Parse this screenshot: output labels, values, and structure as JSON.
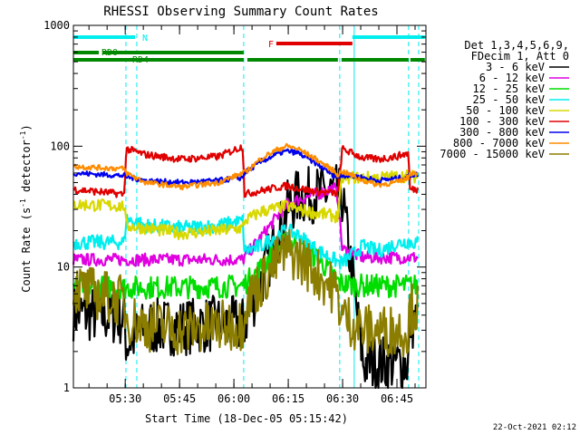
{
  "chart_data": {
    "type": "line",
    "title": "RHESSI Observing Summary Count Rates",
    "xlabel": "Start Time (18-Dec-05 05:15:42)",
    "ylabel": "Count Rate (s⁻¹ detector⁻¹)",
    "ylabel_base": "Count Rate (s",
    "ylabel_sup1": "-1",
    "ylabel_mid": " detector",
    "ylabel_sup2": "-1",
    "ylabel_end": ")",
    "y_scale": "log",
    "ylim": [
      1,
      1000
    ],
    "xlim": [
      "05:15:42",
      "06:53:00"
    ],
    "x_ticks": [
      "05:30",
      "05:45",
      "06:00",
      "06:15",
      "06:30",
      "06:45"
    ],
    "x_tick_minutes": [
      14.3,
      29.3,
      44.3,
      59.3,
      74.3,
      89.3
    ],
    "x_range_minutes": [
      0,
      97.3
    ],
    "y_ticks": [
      1,
      10,
      100,
      1000
    ],
    "y_tick_labels": [
      "1",
      "10",
      "100",
      "1000"
    ],
    "legend_header": [
      "Det 1,3,4,5,6,9,",
      "FDecim 1, Att 0"
    ],
    "legend_placement": "right",
    "x": [
      0,
      14,
      14.6,
      20,
      30,
      40,
      46.8,
      47.2,
      52,
      57,
      59,
      62,
      67,
      72,
      73,
      74.2,
      80,
      84,
      89,
      92.5,
      92.8,
      95
    ],
    "series": [
      {
        "name": "3 - 6 keV",
        "color": "#000000",
        "values": [
          4.2,
          3.8,
          2.3,
          3.2,
          3.2,
          3.4,
          3.3,
          3.4,
          8,
          20,
          30,
          38,
          40,
          42,
          40,
          38,
          1.6,
          1.6,
          1.6,
          1.6,
          3.5,
          3.5
        ]
      },
      {
        "name": "6 - 12 keV",
        "color": "#e000e0",
        "values": [
          11.5,
          11.5,
          11.5,
          11.5,
          11.5,
          11.5,
          11.5,
          12,
          18,
          28,
          33,
          36,
          40,
          45,
          38,
          14,
          12,
          12,
          12,
          12,
          12,
          12
        ]
      },
      {
        "name": "12 - 25 keV",
        "color": "#00dd00",
        "values": [
          7,
          6.8,
          6.8,
          6.8,
          6.8,
          6.9,
          7,
          7.2,
          10,
          14.5,
          16,
          15.5,
          12,
          8.5,
          7.5,
          7.3,
          7,
          7,
          7,
          7,
          7,
          7
        ]
      },
      {
        "name": "25 - 50 keV",
        "color": "#00eeee",
        "values": [
          16,
          16,
          25,
          22,
          21,
          22,
          24,
          13.5,
          15,
          19,
          20,
          18.5,
          14,
          11.5,
          11,
          10.8,
          15,
          13.5,
          15.5,
          16.5,
          16,
          16
        ]
      },
      {
        "name": "50 - 100 keV",
        "color": "#d8d800",
        "values": [
          33,
          32,
          22,
          21,
          19,
          20,
          21,
          24,
          29,
          31,
          32,
          30,
          28,
          26.5,
          26,
          55,
          55,
          55,
          56,
          57,
          56,
          56
        ]
      },
      {
        "name": "100 - 300 keV",
        "color": "#e00000",
        "values": [
          44,
          40,
          95,
          85,
          78,
          82,
          100,
          40,
          43,
          46,
          47,
          45,
          42,
          41,
          40,
          95,
          80,
          78,
          82,
          88,
          44,
          44
        ]
      },
      {
        "name": "300 - 800 keV",
        "color": "#0000ee",
        "values": [
          60,
          57,
          56,
          52,
          50,
          52,
          55,
          60,
          75,
          88,
          91,
          88,
          72,
          57,
          55,
          58,
          55,
          52,
          54,
          56,
          58,
          58
        ]
      },
      {
        "name": "800 - 7000 keV",
        "color": "#ff8c00",
        "values": [
          68,
          65,
          60,
          50,
          46,
          50,
          60,
          60,
          80,
          96,
          100,
          95,
          78,
          62,
          58,
          62,
          52,
          48,
          50,
          55,
          60,
          60
        ]
      },
      {
        "name": "7000 - 15000 keV",
        "color": "#8b7d00",
        "values": [
          6.8,
          5.2,
          3.8,
          3.3,
          3.0,
          3.2,
          3.4,
          5,
          7.5,
          12,
          13.5,
          12,
          9,
          6.5,
          5.5,
          4,
          3,
          3,
          3,
          3,
          4.5,
          4.5
        ]
      }
    ],
    "annotations": {
      "N_label": "N",
      "F_label": "F",
      "RD0_label": "RD0",
      "RD4_label": "RD4",
      "N_segments_min": [
        [
          0,
          17
        ],
        [
          77,
          97
        ]
      ],
      "F_segments_min": [
        [
          56,
          77
        ]
      ],
      "RD0_segments_min": [
        [
          0,
          7
        ],
        [
          8,
          47
        ]
      ],
      "RD4_segments_min": [
        [
          0,
          47
        ],
        [
          48,
          73
        ],
        [
          74,
          92.5
        ],
        [
          93,
          97
        ]
      ],
      "vertical_markers_min": [
        14.5,
        17.5,
        47,
        73.5,
        77.5,
        92.5,
        95.3
      ],
      "solid_markers_min": [
        77.5
      ]
    },
    "colors": {
      "N_bar": "#00eeee",
      "F_bar": "#e00000",
      "RD_bars": "#008800",
      "marker": "#00eeee",
      "axes": "#000000"
    }
  },
  "footer": {
    "timestamp": "22-Oct-2021 02:12"
  }
}
